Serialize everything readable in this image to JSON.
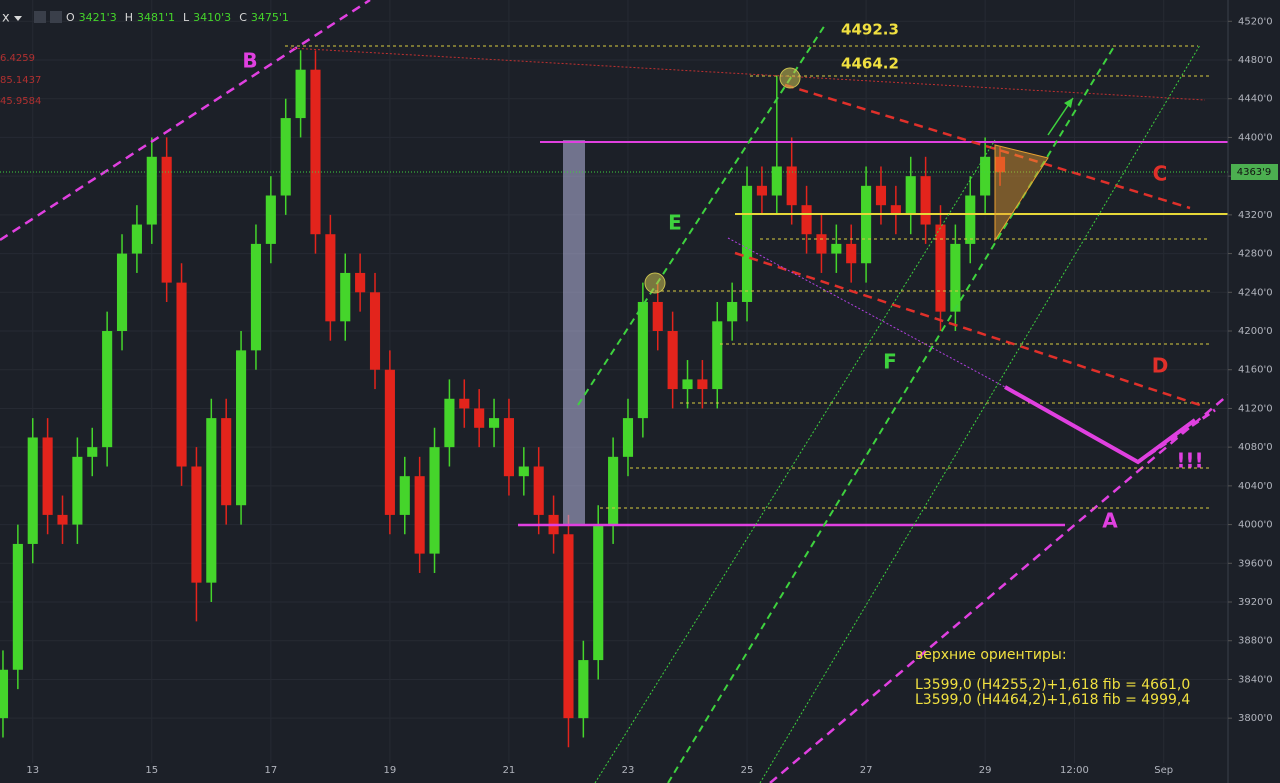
{
  "chart_data": {
    "type": "candlestick",
    "symbol": "x",
    "ohlc_header": [
      {
        "key": "O",
        "value": "3421'3"
      },
      {
        "key": "H",
        "value": "3481'1"
      },
      {
        "key": "L",
        "value": "3410'3"
      },
      {
        "key": "C",
        "value": "3475'1"
      }
    ],
    "indicator_values": [
      "6.4259",
      "85.1437",
      "45.9584"
    ],
    "last_price_label": "4363'9",
    "up_color": "#45d52b",
    "down_color": "#e3241c",
    "grid": true,
    "xlim": [
      12.45,
      33.08
    ],
    "ylim": [
      3733,
      4542
    ],
    "xticks": [
      13,
      15,
      17,
      19,
      21,
      23,
      25,
      27,
      29,
      {
        "value": 30.5,
        "label": "12:00"
      },
      {
        "value": 32,
        "label": "Sep"
      }
    ],
    "yticks": [
      {
        "value": 3800,
        "label": "3800'0"
      },
      {
        "value": 3840,
        "label": "3840'0"
      },
      {
        "value": 3880,
        "label": "3880'0"
      },
      {
        "value": 3920,
        "label": "3920'0"
      },
      {
        "value": 3960,
        "label": "3960'0"
      },
      {
        "value": 4000,
        "label": "4000'0"
      },
      {
        "value": 4040,
        "label": "4040'0"
      },
      {
        "value": 4080,
        "label": "4080'0"
      },
      {
        "value": 4120,
        "label": "4120'0"
      },
      {
        "value": 4160,
        "label": "4160'0"
      },
      {
        "value": 4200,
        "label": "4200'0"
      },
      {
        "value": 4240,
        "label": "4240'0"
      },
      {
        "value": 4280,
        "label": "4280'0"
      },
      {
        "value": 4320,
        "label": "4320'0"
      },
      {
        "value": 4360,
        "label": "4360'0"
      },
      {
        "value": 4400,
        "label": "4400'0"
      },
      {
        "value": 4440,
        "label": "4440'0"
      },
      {
        "value": 4480,
        "label": "4480'0"
      },
      {
        "value": 4520,
        "label": "4520'0"
      }
    ],
    "x": [
      12.5,
      12.75,
      13,
      13.25,
      13.5,
      13.75,
      14,
      14.25,
      14.5,
      14.75,
      15,
      15.25,
      15.5,
      15.75,
      16,
      16.25,
      16.5,
      16.75,
      17,
      17.25,
      17.5,
      17.75,
      18,
      18.25,
      18.5,
      18.75,
      19,
      19.25,
      19.5,
      19.75,
      20,
      20.25,
      20.5,
      20.75,
      21,
      21.25,
      21.5,
      21.75,
      22,
      22.25,
      22.5,
      22.75,
      23,
      23.25,
      23.5,
      23.75,
      24,
      24.25,
      24.5,
      24.75,
      25,
      25.25,
      25.5,
      25.75,
      26,
      26.25,
      26.5,
      26.75,
      27,
      27.25,
      27.5,
      27.75,
      28,
      28.25,
      28.5,
      28.75,
      29,
      29.25
    ],
    "open": [
      3800,
      3850,
      3980,
      4090,
      4010,
      4000,
      4070,
      4080,
      4200,
      4280,
      4310,
      4380,
      4250,
      4060,
      3940,
      4110,
      4020,
      4180,
      4290,
      4340,
      4420,
      4470,
      4300,
      4210,
      4260,
      4240,
      4160,
      4010,
      4050,
      3970,
      4080,
      4130,
      4120,
      4100,
      4110,
      4050,
      4060,
      4010,
      3990,
      3800,
      3860,
      4000,
      4070,
      4110,
      4230,
      4200,
      4140,
      4150,
      4140,
      4210,
      4230,
      4350,
      4340,
      4370,
      4330,
      4300,
      4280,
      4290,
      4270,
      4350,
      4330,
      4320,
      4360,
      4310,
      4220,
      4290,
      4340,
      4380
    ],
    "high": [
      3870,
      4000,
      4110,
      4110,
      4030,
      4090,
      4100,
      4220,
      4300,
      4330,
      4400,
      4400,
      4270,
      4080,
      4130,
      4130,
      4200,
      4310,
      4360,
      4440,
      4490,
      4490,
      4320,
      4280,
      4280,
      4260,
      4180,
      4070,
      4070,
      4100,
      4150,
      4150,
      4140,
      4130,
      4130,
      4080,
      4080,
      4030,
      4010,
      3880,
      4020,
      4090,
      4130,
      4250,
      4250,
      4220,
      4170,
      4170,
      4230,
      4250,
      4370,
      4370,
      4464,
      4400,
      4350,
      4320,
      4310,
      4310,
      4370,
      4370,
      4350,
      4380,
      4380,
      4330,
      4310,
      4360,
      4400,
      4390
    ],
    "low": [
      3780,
      3830,
      3960,
      3990,
      3980,
      3980,
      4050,
      4060,
      4180,
      4260,
      4290,
      4230,
      4040,
      3900,
      3920,
      4000,
      4000,
      4160,
      4270,
      4320,
      4400,
      4280,
      4190,
      4190,
      4220,
      4140,
      3990,
      3990,
      3950,
      3950,
      4060,
      4100,
      4080,
      4080,
      4030,
      4030,
      3990,
      3970,
      3770,
      3780,
      3840,
      3980,
      4050,
      4090,
      4180,
      4120,
      4120,
      4120,
      4120,
      4190,
      4210,
      4320,
      4320,
      4310,
      4280,
      4260,
      4260,
      4250,
      4250,
      4310,
      4300,
      4300,
      4290,
      4200,
      4200,
      4270,
      4320,
      4350
    ],
    "close": [
      3850,
      3980,
      4090,
      4010,
      4000,
      4070,
      4080,
      4200,
      4280,
      4310,
      4380,
      4250,
      4060,
      3940,
      4110,
      4020,
      4180,
      4290,
      4340,
      4420,
      4470,
      4300,
      4210,
      4260,
      4240,
      4160,
      4010,
      4050,
      3970,
      4080,
      4130,
      4120,
      4100,
      4110,
      4050,
      4060,
      4010,
      3990,
      3800,
      3860,
      4000,
      4070,
      4110,
      4230,
      4200,
      4140,
      4150,
      4140,
      4210,
      4230,
      4350,
      4340,
      4370,
      4330,
      4300,
      4280,
      4290,
      4270,
      4350,
      4330,
      4320,
      4360,
      4310,
      4220,
      4290,
      4340,
      4380,
      4364
    ],
    "annotations": [
      "B",
      "E",
      "C",
      "F",
      "D",
      "A",
      "!!!",
      "4492.3",
      "4464.2",
      "верхние ориентиры:",
      "L3599,0 (H4255,2)+1,618 fib = 4661,0",
      "L3599,0 (H4464,2)+1,618 fib = 4999,4"
    ]
  }
}
